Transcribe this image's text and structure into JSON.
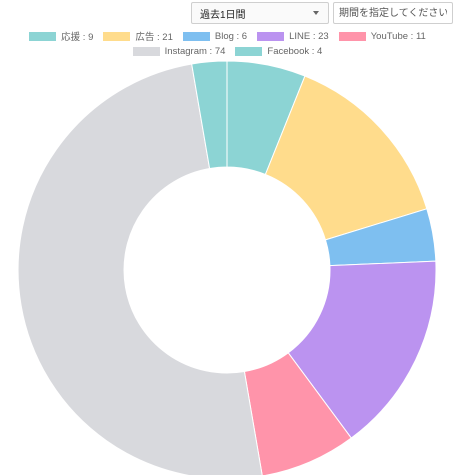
{
  "controls": {
    "period_label": "過去1日間",
    "date_placeholder": "期間を指定してください"
  },
  "chart_data": {
    "type": "pie",
    "variant": "doughnut",
    "categories": [
      "応援",
      "広告",
      "Blog",
      "LINE",
      "YouTube",
      "Instagram",
      "Facebook"
    ],
    "values": [
      9,
      21,
      6,
      23,
      11,
      74,
      4
    ],
    "colors": [
      "#8cd4d4",
      "#ffdc8c",
      "#7ebff0",
      "#bb93f0",
      "#ff94aa",
      "#d8d9dd",
      "#8cd4d4"
    ],
    "legend": [
      {
        "text": "応援 : 9"
      },
      {
        "text": "広告 : 21"
      },
      {
        "text": "Blog : 6"
      },
      {
        "text": "LINE : 23"
      },
      {
        "text": "YouTube : 11"
      },
      {
        "text": "Instagram : 74"
      },
      {
        "text": "Facebook : 4"
      }
    ],
    "legend_position": "top"
  }
}
